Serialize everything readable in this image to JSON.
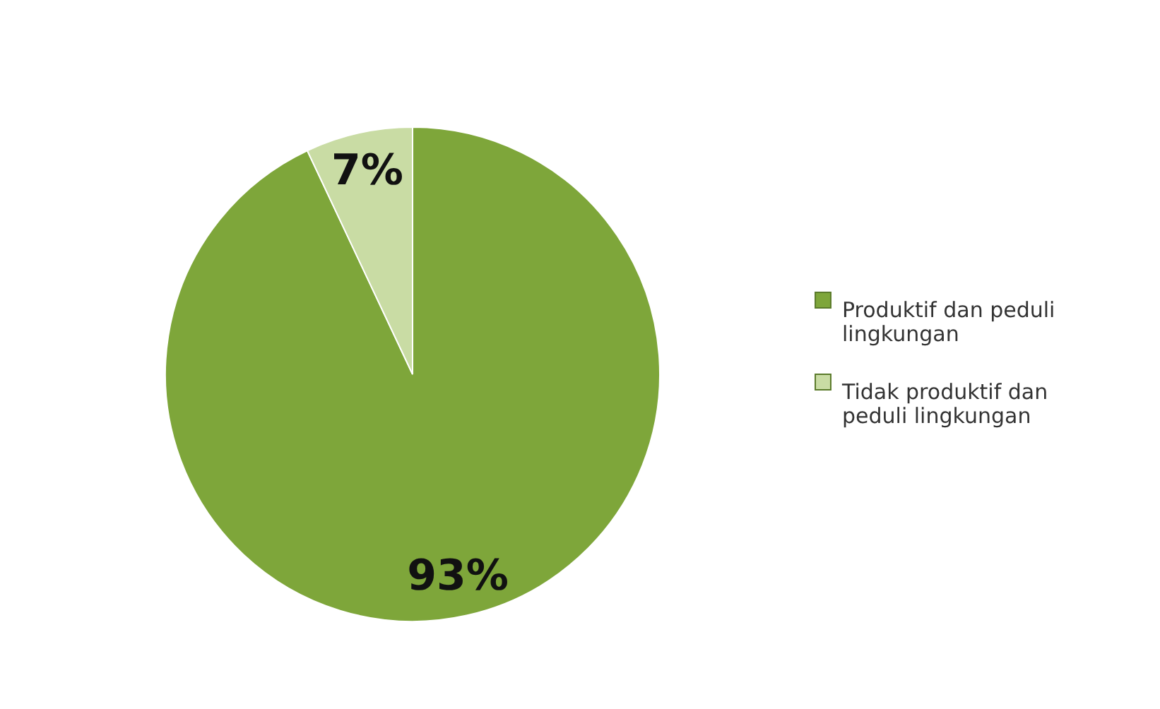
{
  "chart_data": {
    "type": "pie",
    "categories": [
      "Produktif dan peduli lingkungan",
      "Tidak produktif dan peduli lingkungan"
    ],
    "values": [
      93,
      7
    ],
    "colors": [
      "#7ea63a",
      "#c9dca4"
    ],
    "value_labels": [
      "93%",
      "7%"
    ],
    "legend": "right"
  }
}
